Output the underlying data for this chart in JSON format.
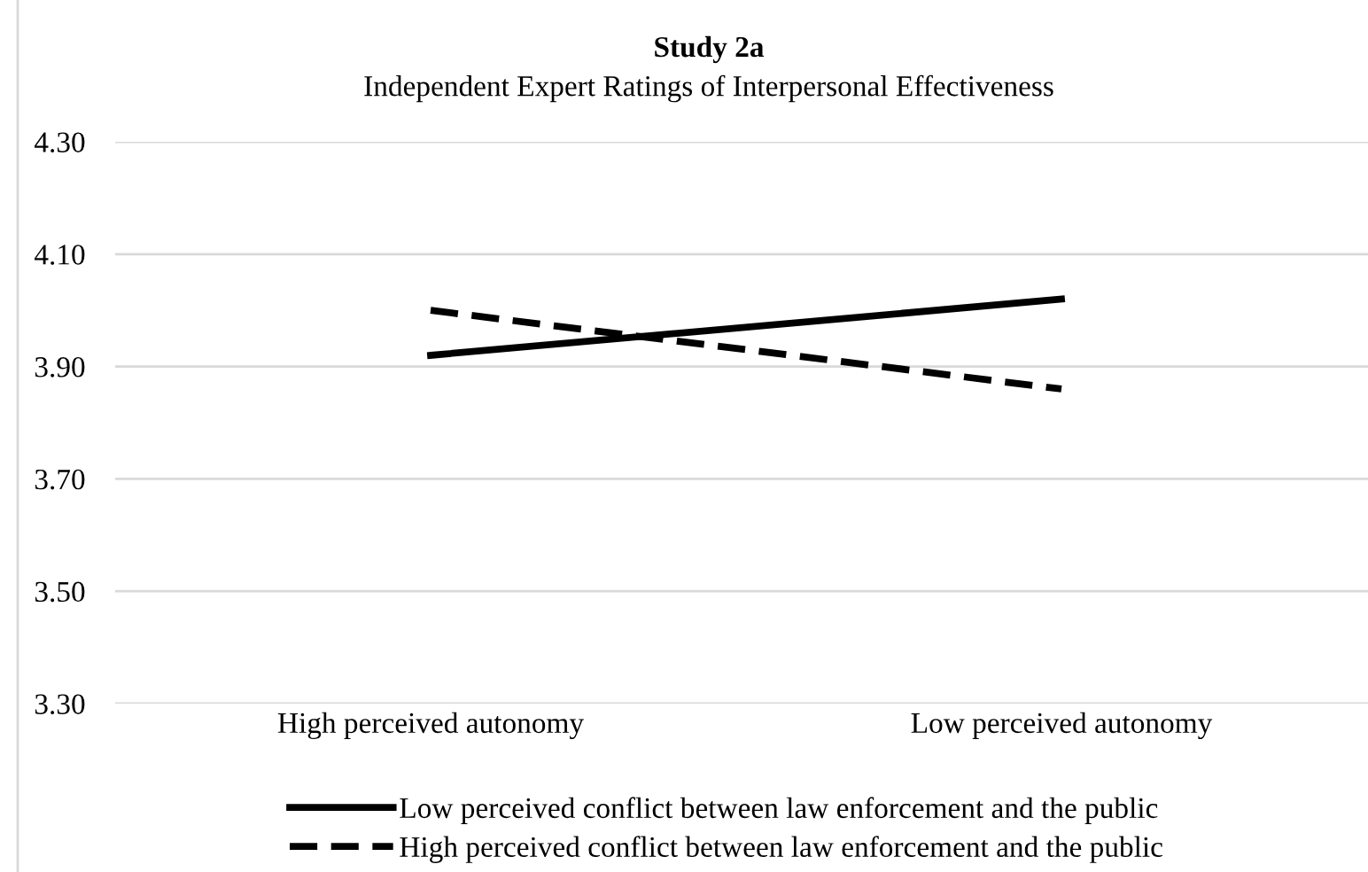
{
  "chart_data": {
    "type": "line",
    "title": "Study 2a",
    "subtitle": "Independent Expert Ratings of Interpersonal Effectiveness",
    "categories": [
      "High perceived autonomy",
      "Low perceived autonomy"
    ],
    "series": [
      {
        "name": "Low perceived conflict between law enforcement and the public",
        "color": "#000000",
        "line_style": "solid",
        "values": [
          3.92,
          4.02
        ]
      },
      {
        "name": "High perceived conflict between law enforcement and the public",
        "color": "#000000",
        "line_style": "dashed",
        "values": [
          4.0,
          3.86
        ]
      }
    ],
    "ylim": [
      3.3,
      4.3
    ],
    "yticks": [
      {
        "value": 3.3,
        "label": "3.30"
      },
      {
        "value": 3.5,
        "label": "3.50"
      },
      {
        "value": 3.7,
        "label": "3.70"
      },
      {
        "value": 3.9,
        "label": "3.90"
      },
      {
        "value": 4.1,
        "label": "4.10"
      },
      {
        "value": 4.3,
        "label": "4.30"
      }
    ],
    "grid": "y",
    "legend": "bottom",
    "marker": "none"
  }
}
